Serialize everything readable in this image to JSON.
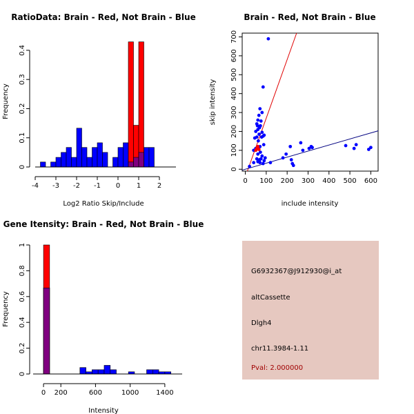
{
  "colors": {
    "brain": "#ff0000",
    "not_brain": "#0000ff",
    "overlap": "#800080",
    "info_bg": "#e6c8c0",
    "pval": "#a00000"
  },
  "info_panel": {
    "probe_id": "G6932367@J912930@i_at",
    "event_type": "altCassette",
    "gene": "Dlgh4",
    "location": "chr11.3984-1.11",
    "pval": "Pval: 2.000000"
  },
  "chart_data": [
    {
      "id": "ratio_hist",
      "type": "bar",
      "title": "RatioData: Brain - Red, Not Brain - Blue",
      "xlabel": "Log2 Ratio Skip/Include",
      "ylabel": "Frequency",
      "xlim": [
        -4,
        2.8
      ],
      "ylim": [
        0,
        0.44
      ],
      "xticks": [
        -4,
        -3,
        -2,
        -1,
        0,
        1,
        2
      ],
      "yticks": [
        0,
        0.1,
        0.2,
        0.3,
        0.4
      ],
      "bin_width": 0.25,
      "series": [
        {
          "name": "Not Brain",
          "color": "blue",
          "bin_starts": [
            -3.75,
            -3.5,
            -3.25,
            -3.0,
            -2.75,
            -2.5,
            -2.25,
            -2.0,
            -1.75,
            -1.5,
            -1.25,
            -1.0,
            -0.75,
            -0.5,
            -0.25,
            0.0,
            0.25,
            0.5,
            0.75,
            1.0,
            1.25,
            1.5,
            1.75,
            2.0,
            2.25
          ],
          "values": [
            0.017,
            0.0,
            0.017,
            0.033,
            0.05,
            0.067,
            0.033,
            0.133,
            0.067,
            0.033,
            0.067,
            0.083,
            0.05,
            0.0,
            0.033,
            0.067,
            0.083,
            0.017,
            0.033,
            0.05,
            0.067,
            0.067,
            0.0,
            0.0,
            0.0
          ]
        },
        {
          "name": "Brain",
          "color": "red",
          "bin_starts": [
            0.5,
            0.75,
            1.0
          ],
          "values": [
            0.429,
            0.143,
            0.429
          ]
        }
      ]
    },
    {
      "id": "intensity_scatter",
      "type": "scatter",
      "title": "Brain - Red, Not Brain - Blue",
      "xlabel": "include intensity",
      "ylabel": "skip intensity",
      "xlim": [
        -15,
        635
      ],
      "ylim": [
        -10,
        720
      ],
      "xticks": [
        0,
        100,
        200,
        300,
        400,
        500,
        600
      ],
      "yticks": [
        0,
        100,
        200,
        300,
        400,
        500,
        600,
        700
      ],
      "series": [
        {
          "name": "Not Brain",
          "color": "blue",
          "x": [
            110,
            85,
            70,
            80,
            65,
            60,
            75,
            55,
            58,
            68,
            60,
            50,
            72,
            80,
            66,
            90,
            85,
            55,
            45,
            62,
            78,
            88,
            70,
            40,
            50,
            60,
            72,
            80,
            95,
            55,
            90,
            60,
            70,
            85,
            68,
            20,
            40,
            75,
            120,
            180,
            195,
            215,
            220,
            225,
            230,
            265,
            275,
            305,
            315,
            320,
            480,
            520,
            530,
            590,
            600
          ],
          "y": [
            690,
            435,
            320,
            300,
            285,
            260,
            255,
            240,
            230,
            220,
            210,
            200,
            230,
            195,
            185,
            180,
            175,
            170,
            165,
            150,
            170,
            130,
            120,
            100,
            110,
            80,
            90,
            70,
            60,
            55,
            45,
            40,
            35,
            30,
            50,
            15,
            35,
            55,
            35,
            60,
            80,
            120,
            50,
            30,
            20,
            140,
            100,
            110,
            120,
            115,
            125,
            110,
            130,
            105,
            115
          ]
        },
        {
          "name": "Brain",
          "color": "red",
          "x": [
            50,
            55,
            60,
            65
          ],
          "y": [
            100,
            110,
            120,
            105
          ]
        }
      ],
      "reference_lines": [
        {
          "name": "Brain fit",
          "color": "red",
          "slope": 3.1,
          "intercept": -40
        },
        {
          "name": "Not Brain fit",
          "color": "darkblue",
          "slope": 0.32,
          "intercept": 0
        }
      ]
    },
    {
      "id": "intensity_hist",
      "type": "bar",
      "title": "Gene Itensity: Brain - Red, Not Brain - Blue",
      "xlabel": "Intensity",
      "ylabel": "Frequency",
      "xlim": [
        -120,
        1600
      ],
      "ylim": [
        0,
        1.0
      ],
      "xticks": [
        0,
        200,
        600,
        1000,
        1400
      ],
      "yticks": [
        0,
        0.2,
        0.4,
        0.6,
        0.8,
        1.0
      ],
      "bin_width": 70,
      "series": [
        {
          "name": "Not Brain",
          "color": "blue",
          "bin_starts": [
            0,
            70,
            140,
            210,
            280,
            350,
            420,
            490,
            560,
            630,
            700,
            770,
            840,
            910,
            980,
            1050,
            1120,
            1190,
            1260,
            1330,
            1400
          ],
          "values": [
            0.667,
            0.0,
            0.0,
            0.0,
            0.0,
            0.0,
            0.05,
            0.017,
            0.033,
            0.033,
            0.067,
            0.033,
            0.0,
            0.0,
            0.017,
            0.0,
            0.0,
            0.033,
            0.033,
            0.017,
            0.017
          ]
        },
        {
          "name": "Brain",
          "color": "red",
          "bin_starts": [
            0
          ],
          "values": [
            1.0
          ]
        }
      ]
    }
  ]
}
